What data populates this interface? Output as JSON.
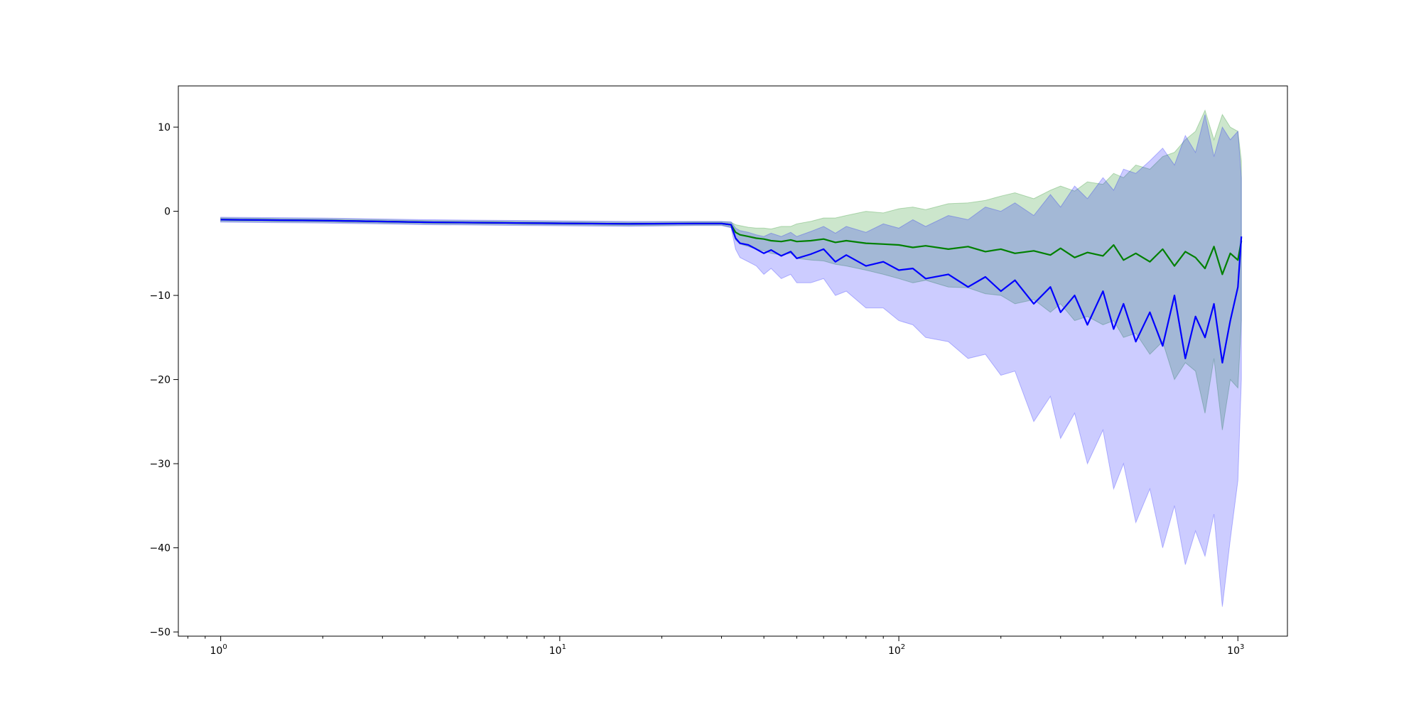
{
  "chart_data": {
    "type": "line",
    "title": "",
    "xlabel": "",
    "ylabel": "",
    "xscale": "log",
    "xlim": [
      0.75,
      1400
    ],
    "ylim": [
      -50.5,
      14.9
    ],
    "grid": false,
    "legend": null,
    "x_ticks": [
      {
        "base": "10",
        "exp": "0",
        "value": 1
      },
      {
        "base": "10",
        "exp": "1",
        "value": 10
      },
      {
        "base": "10",
        "exp": "2",
        "value": 100
      },
      {
        "base": "10",
        "exp": "3",
        "value": 1000
      }
    ],
    "y_ticks": [
      {
        "label": "10",
        "value": 10
      },
      {
        "label": "0",
        "value": 0
      },
      {
        "label": "−10",
        "value": -10
      },
      {
        "label": "−20",
        "value": -20
      },
      {
        "label": "−30",
        "value": -30
      },
      {
        "label": "−40",
        "value": -40
      },
      {
        "label": "−50",
        "value": -50
      }
    ],
    "colors": {
      "green": "#008000",
      "blue": "#0000ff",
      "green_band": "#008000",
      "blue_band": "#0000ff"
    },
    "series": [
      {
        "color": "green",
        "x": [
          1,
          2,
          4,
          8,
          16,
          25,
          30,
          32,
          33,
          34,
          36,
          38,
          40,
          42,
          45,
          48,
          50,
          55,
          60,
          65,
          70,
          80,
          90,
          100,
          110,
          120,
          140,
          160,
          180,
          200,
          220,
          250,
          280,
          300,
          330,
          360,
          400,
          430,
          460,
          500,
          550,
          600,
          650,
          700,
          750,
          800,
          850,
          900,
          950,
          1000,
          1024
        ],
        "mean": [
          -1.0,
          -1.1,
          -1.3,
          -1.4,
          -1.5,
          -1.45,
          -1.45,
          -1.6,
          -2.5,
          -2.8,
          -3.0,
          -3.2,
          -3.3,
          -3.5,
          -3.6,
          -3.4,
          -3.6,
          -3.5,
          -3.3,
          -3.7,
          -3.5,
          -3.8,
          -3.9,
          -4.0,
          -4.3,
          -4.1,
          -4.5,
          -4.2,
          -4.8,
          -4.5,
          -5.0,
          -4.7,
          -5.2,
          -4.4,
          -5.5,
          -4.9,
          -5.3,
          -4.0,
          -5.8,
          -5.0,
          -6.0,
          -4.5,
          -6.5,
          -4.8,
          -5.5,
          -6.8,
          -4.2,
          -7.5,
          -5.0,
          -5.8,
          -3.5
        ],
        "upper": [
          -0.8,
          -0.9,
          -1.1,
          -1.2,
          -1.3,
          -1.25,
          -1.25,
          -1.3,
          -1.6,
          -1.7,
          -1.9,
          -2.0,
          -2.0,
          -2.1,
          -1.8,
          -1.8,
          -1.5,
          -1.2,
          -0.8,
          -0.8,
          -0.5,
          0.0,
          -0.2,
          0.3,
          0.5,
          0.2,
          0.9,
          1.0,
          1.3,
          1.8,
          2.2,
          1.5,
          2.5,
          3.0,
          2.4,
          3.5,
          3.2,
          4.5,
          4.0,
          5.5,
          5.0,
          6.5,
          7.0,
          8.5,
          9.5,
          12.0,
          8.5,
          11.5,
          10.0,
          9.5,
          6.0
        ],
        "lower": [
          -1.2,
          -1.3,
          -1.5,
          -1.6,
          -1.7,
          -1.65,
          -1.65,
          -1.9,
          -3.4,
          -3.9,
          -4.2,
          -4.5,
          -4.7,
          -5.0,
          -5.2,
          -5.0,
          -5.6,
          -5.8,
          -5.9,
          -6.3,
          -6.5,
          -7.0,
          -7.5,
          -8.0,
          -8.5,
          -8.2,
          -9.0,
          -9.1,
          -9.8,
          -10.0,
          -11.0,
          -10.5,
          -12.0,
          -11.0,
          -13.0,
          -12.5,
          -13.5,
          -13.0,
          -15.0,
          -14.5,
          -17.0,
          -15.5,
          -20.0,
          -18.0,
          -19.0,
          -24.0,
          -17.5,
          -26.0,
          -20.0,
          -21.0,
          -13.0
        ]
      },
      {
        "color": "blue",
        "x": [
          1,
          2,
          4,
          8,
          16,
          25,
          30,
          32,
          33,
          34,
          36,
          38,
          40,
          42,
          45,
          48,
          50,
          55,
          60,
          65,
          70,
          80,
          90,
          100,
          110,
          120,
          140,
          160,
          180,
          200,
          220,
          250,
          280,
          300,
          330,
          360,
          400,
          430,
          460,
          500,
          550,
          600,
          650,
          700,
          750,
          800,
          850,
          900,
          950,
          1000,
          1024
        ],
        "mean": [
          -1.0,
          -1.1,
          -1.3,
          -1.4,
          -1.5,
          -1.45,
          -1.45,
          -1.6,
          -3.2,
          -3.8,
          -4.0,
          -4.5,
          -5.0,
          -4.6,
          -5.3,
          -4.8,
          -5.6,
          -5.1,
          -4.5,
          -6.0,
          -5.2,
          -6.5,
          -6.0,
          -7.0,
          -6.8,
          -8.0,
          -7.5,
          -9.0,
          -7.8,
          -9.5,
          -8.2,
          -11.0,
          -9.0,
          -12.0,
          -10.0,
          -13.5,
          -9.5,
          -14.0,
          -11.0,
          -15.5,
          -12.0,
          -16.0,
          -10.0,
          -17.5,
          -12.5,
          -15.0,
          -11.0,
          -18.0,
          -13.0,
          -9.0,
          -3.0
        ],
        "upper": [
          -0.7,
          -0.8,
          -1.0,
          -1.1,
          -1.2,
          -1.2,
          -1.2,
          -1.25,
          -2.0,
          -2.3,
          -2.5,
          -2.8,
          -3.0,
          -2.6,
          -3.0,
          -2.5,
          -3.0,
          -2.4,
          -1.8,
          -2.6,
          -1.8,
          -2.5,
          -1.5,
          -2.0,
          -1.0,
          -1.8,
          -0.5,
          -1.0,
          0.5,
          0.0,
          1.0,
          -0.5,
          2.0,
          0.5,
          3.0,
          1.5,
          4.0,
          2.5,
          5.0,
          4.5,
          6.0,
          7.5,
          5.5,
          9.0,
          7.0,
          11.5,
          6.5,
          10.0,
          8.5,
          9.5,
          4.0
        ],
        "lower": [
          -1.3,
          -1.4,
          -1.6,
          -1.7,
          -1.8,
          -1.7,
          -1.7,
          -1.95,
          -4.5,
          -5.5,
          -6.0,
          -6.5,
          -7.5,
          -6.8,
          -8.0,
          -7.5,
          -8.5,
          -8.5,
          -8.0,
          -10.0,
          -9.5,
          -11.5,
          -11.5,
          -13.0,
          -13.5,
          -15.0,
          -15.5,
          -17.5,
          -17.0,
          -19.5,
          -19.0,
          -25.0,
          -22.0,
          -27.0,
          -24.0,
          -30.0,
          -26.0,
          -33.0,
          -30.0,
          -37.0,
          -33.0,
          -40.0,
          -35.0,
          -42.0,
          -38.0,
          -41.0,
          -36.0,
          -47.0,
          -39.0,
          -32.0,
          -20.0
        ]
      }
    ]
  }
}
